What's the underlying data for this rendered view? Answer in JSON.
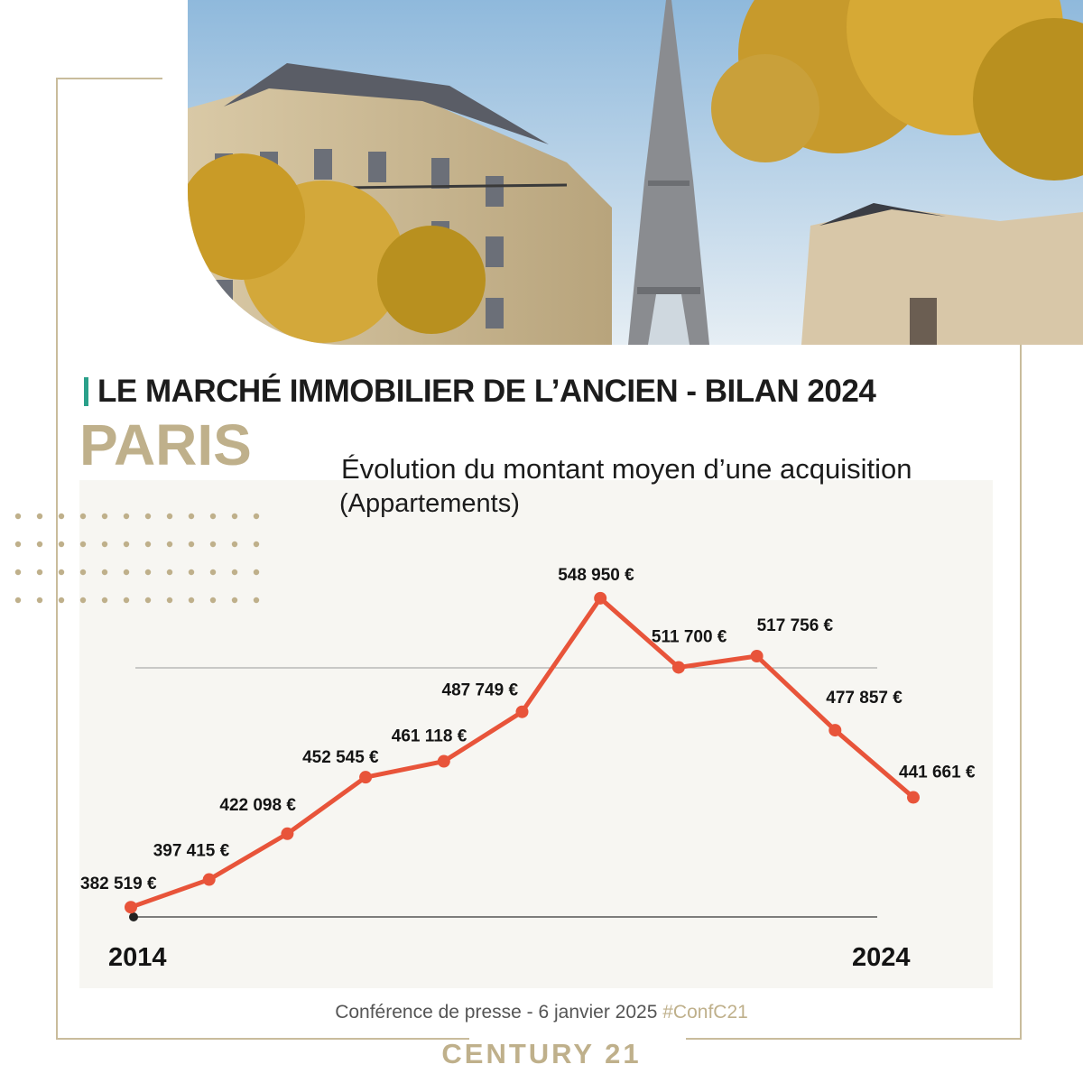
{
  "headline": "LE MARCHÉ IMMOBILIER DE L’ANCIEN - BILAN 2024",
  "city": "PARIS",
  "footer": {
    "note": "Conférence de presse - 6 janvier 2025",
    "hashtag": "#ConfC21",
    "brand": "CENTURY 21"
  },
  "colors": {
    "accent_teal": "#2aa08a",
    "brand_gold": "#bfb08b",
    "line": "#e8543a"
  },
  "chart_data": {
    "type": "line",
    "title": "Évolution du montant moyen d’une acquisition",
    "subtitle": "(Appartements)",
    "x_start_label": "2014",
    "x_end_label": "2024",
    "x": [
      2014,
      2015,
      2016,
      2017,
      2018,
      2019,
      2020,
      2021,
      2022,
      2023,
      2024
    ],
    "values": [
      382519,
      397415,
      422098,
      452545,
      461118,
      487749,
      548950,
      511700,
      517756,
      477857,
      441661
    ],
    "labels": [
      "382 519 €",
      "397 415 €",
      "422 098 €",
      "452 545 €",
      "461 118 €",
      "487 749 €",
      "548 950 €",
      "511 700 €",
      "517 756 €",
      "477 857 €",
      "441 661 €"
    ],
    "ylim": [
      369000,
      562000
    ],
    "grid": true
  }
}
